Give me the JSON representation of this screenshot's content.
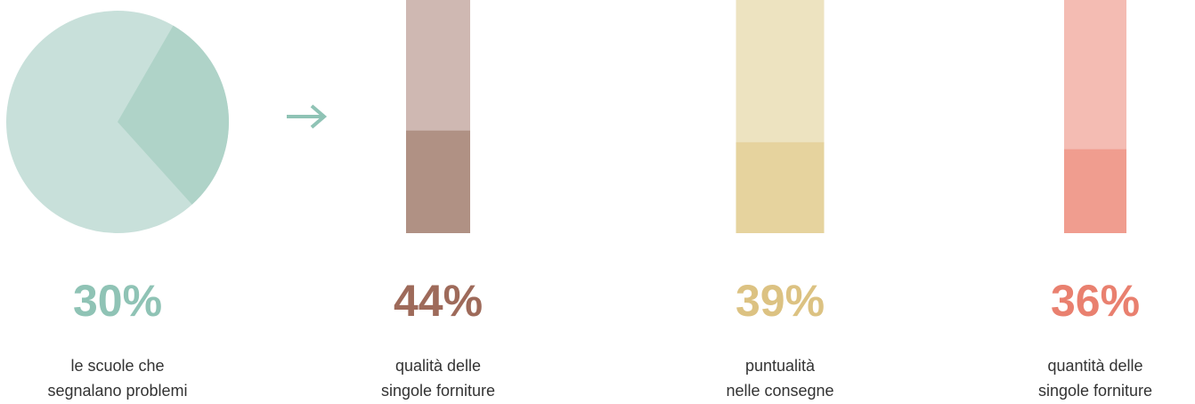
{
  "chart_data": [
    {
      "type": "pie",
      "values": [
        30
      ],
      "value_labels": [
        "30%"
      ],
      "color": "#afd3c8",
      "track_color": "#c8e0da",
      "label_color": "#8fc3b5",
      "caption": [
        "le scuole che",
        "segnalano problemi"
      ]
    },
    {
      "type": "bar",
      "values": [
        44
      ],
      "value_labels": [
        "44%"
      ],
      "ylim": [
        0,
        100
      ],
      "color": "#b09184",
      "track_color": "#cfb8b2",
      "label_color": "#9e6a5a",
      "caption": [
        "qualità delle",
        "singole forniture"
      ]
    },
    {
      "type": "bar",
      "values": [
        39
      ],
      "value_labels": [
        "39%"
      ],
      "ylim": [
        0,
        100
      ],
      "color": "#e6d39e",
      "track_color": "#ede3c0",
      "label_color": "#dcc282",
      "caption": [
        "puntualità",
        "nelle consegne"
      ]
    },
    {
      "type": "bar",
      "values": [
        36
      ],
      "value_labels": [
        "36%"
      ],
      "ylim": [
        0,
        100
      ],
      "color": "#f09d8f",
      "track_color": "#f4bcb3",
      "label_color": "#e9806f",
      "caption": [
        "quantità delle",
        "singole forniture"
      ]
    }
  ]
}
